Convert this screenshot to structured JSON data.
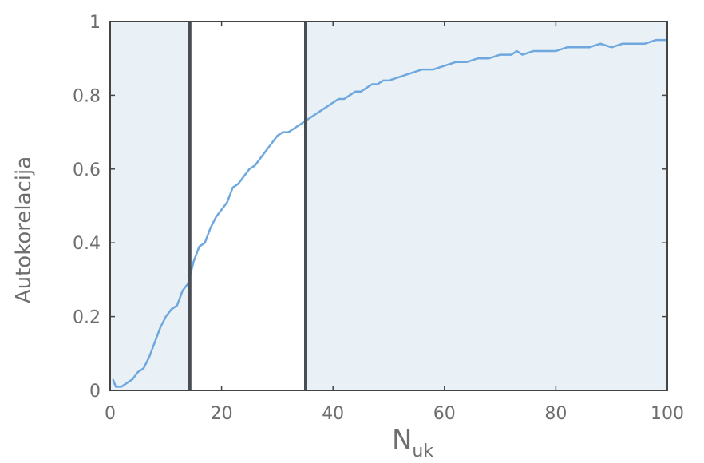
{
  "chart_data": {
    "type": "line",
    "title": "",
    "xlabel": "N",
    "xlabel_subscript": "uk",
    "ylabel": "Autokorelacija",
    "xlim": [
      0,
      100
    ],
    "ylim": [
      0,
      1
    ],
    "xticks": [
      0,
      20,
      40,
      60,
      80,
      100
    ],
    "xtick_labels": [
      "0",
      "20",
      "40",
      "60",
      "80",
      "100"
    ],
    "yticks": [
      0,
      0.2,
      0.4,
      0.6,
      0.8,
      1
    ],
    "ytick_labels": [
      "0",
      "0.2",
      "0.4",
      "0.6",
      "0.8",
      "1"
    ],
    "grid": false,
    "legend": "none",
    "highlight_region": {
      "x_from": 14.3,
      "x_to": 35.1
    },
    "vertical_lines": [
      14.3,
      35.1
    ],
    "colors": {
      "line": "#6ea8de",
      "plot_background": "#e9f1f7",
      "highlight_background": "#ffffff",
      "axes": "#444444",
      "vlines": "#4a4e54",
      "text": "#6e6e6e"
    },
    "series": [
      {
        "x": [
          0.5,
          1,
          2,
          3,
          4,
          5,
          6,
          7,
          8,
          9,
          10,
          11,
          12,
          13,
          14,
          15,
          16,
          17,
          18,
          19,
          20,
          21,
          22,
          23,
          24,
          25,
          26,
          27,
          28,
          29,
          30,
          31,
          32,
          33,
          34,
          35,
          36,
          37,
          38,
          39,
          40,
          41,
          42,
          43,
          44,
          45,
          46,
          47,
          48,
          49,
          50,
          52,
          54,
          56,
          58,
          60,
          62,
          64,
          66,
          68,
          70,
          72,
          73,
          74,
          76,
          78,
          80,
          82,
          84,
          86,
          88,
          90,
          92,
          94,
          96,
          98,
          100
        ],
        "y": [
          0.03,
          0.01,
          0.01,
          0.02,
          0.03,
          0.05,
          0.06,
          0.09,
          0.13,
          0.17,
          0.2,
          0.22,
          0.23,
          0.27,
          0.29,
          0.35,
          0.39,
          0.4,
          0.44,
          0.47,
          0.49,
          0.51,
          0.55,
          0.56,
          0.58,
          0.6,
          0.61,
          0.63,
          0.65,
          0.67,
          0.69,
          0.7,
          0.7,
          0.71,
          0.72,
          0.73,
          0.74,
          0.75,
          0.76,
          0.77,
          0.78,
          0.79,
          0.79,
          0.8,
          0.81,
          0.81,
          0.82,
          0.83,
          0.83,
          0.84,
          0.84,
          0.85,
          0.86,
          0.87,
          0.87,
          0.88,
          0.89,
          0.89,
          0.9,
          0.9,
          0.91,
          0.91,
          0.92,
          0.91,
          0.92,
          0.92,
          0.92,
          0.93,
          0.93,
          0.93,
          0.94,
          0.93,
          0.94,
          0.94,
          0.94,
          0.95,
          0.95
        ]
      }
    ]
  }
}
